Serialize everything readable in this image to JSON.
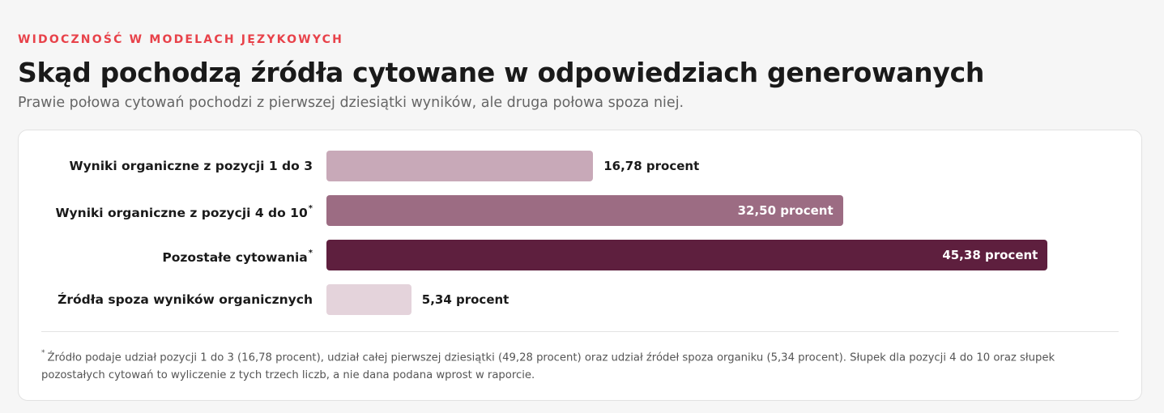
{
  "header": {
    "eyebrow": "WIDOCZNOŚĆ W MODELACH JĘZYKOWYCH",
    "title": "Skąd pochodzą źródła cytowane w odpowiedziach generowanych",
    "subtitle": "Prawie połowa cytowań pochodzi z pierwszej dziesiątki wyników, ale druga połowa spoza niej."
  },
  "chart_data": {
    "type": "bar",
    "orientation": "horizontal",
    "categories": [
      "Wyniki organiczne z pozycji 1 do 3",
      "Wyniki organiczne z pozycji 4 do 10",
      "Pozostałe cytowania",
      "Źródła spoza wyników organicznych"
    ],
    "asterisk": [
      false,
      true,
      true,
      false
    ],
    "values": [
      16.78,
      32.5,
      45.38,
      5.34
    ],
    "value_labels": [
      "16,78 procent",
      "32,50 procent",
      "45,38 procent",
      "5,34 procent"
    ],
    "colors": [
      "#c8a9b8",
      "#9c6c83",
      "#5e1f3e",
      "#e4d3db"
    ],
    "label_inside": [
      false,
      true,
      true,
      false
    ],
    "xlim": [
      0,
      50
    ],
    "grid": false,
    "legend": "none",
    "footnote_marker": "*",
    "footnote": "Źródło podaje udział pozycji 1 do 3 (16,78 procent), udział całej pierwszej dziesiątki (49,28 procent) oraz udział źródeł spoza organiku (5,34 procent). Słupek dla pozycji 4 do 10 oraz słupek pozostałych cytowań to wyliczenie z tych trzech liczb, a nie dana podana wprost w raporcie."
  }
}
